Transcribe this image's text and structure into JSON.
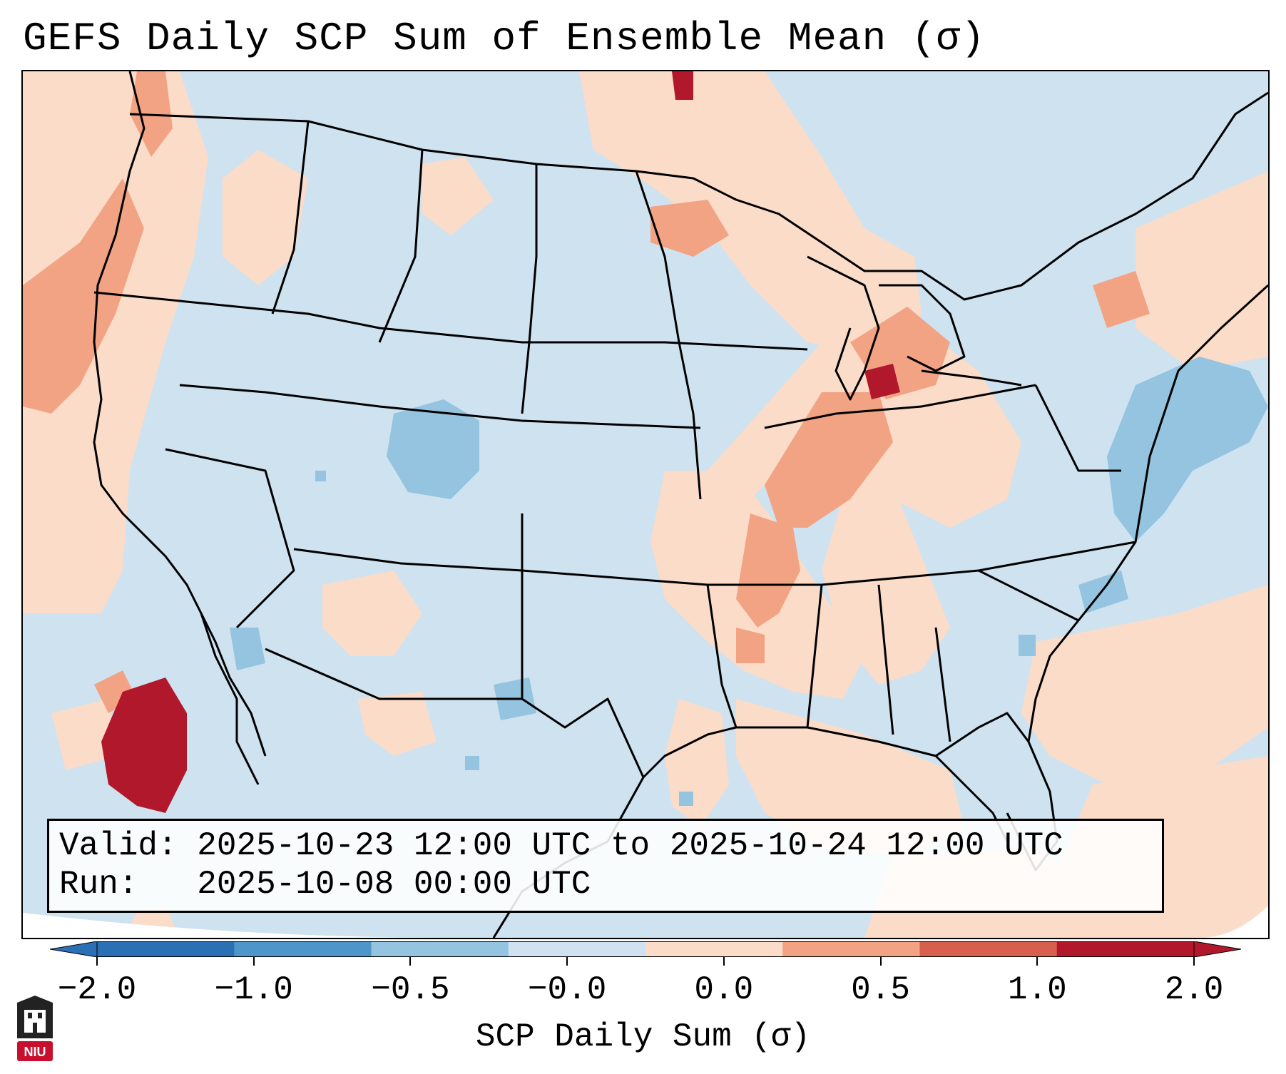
{
  "title": "GEFS Daily SCP Sum of Ensemble Mean (σ)",
  "info": {
    "valid_label": "Valid:",
    "valid_value": "2025-10-23 12:00 UTC to 2025-10-24 12:00 UTC",
    "run_label": "Run:",
    "run_value": "2025-10-08 00:00 UTC"
  },
  "colorbar": {
    "label": "SCP Daily Sum (σ)",
    "ticks": [
      "−2.0",
      "−1.0",
      "−0.5",
      "−0.0",
      "0.0",
      "0.5",
      "1.0",
      "2.0"
    ],
    "colors": [
      "#2b6fb4",
      "#4e95c9",
      "#94c4df",
      "#d0e2ef",
      "#fbdcc9",
      "#f2a384",
      "#d6604d",
      "#b2182b"
    ]
  },
  "map": {
    "background_color": "#cfe2ef",
    "land_light_red": "#fbdcc9",
    "mid_red": "#f2a384",
    "deep_red": "#b2182b",
    "light_blue": "#94c4df"
  },
  "logo": {
    "text": "NIU",
    "color": "#c8102e"
  }
}
